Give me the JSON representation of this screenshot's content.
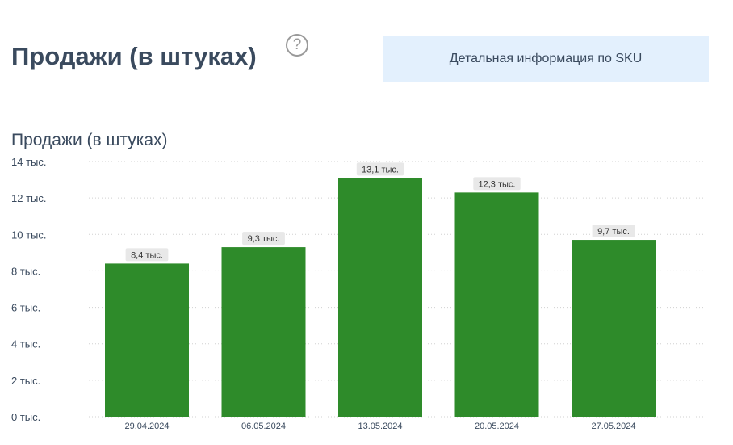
{
  "header": {
    "title": "Продажи (в штуках)",
    "help_icon": "question-circle-icon",
    "sku_button": "Детальная информация по SKU"
  },
  "chart_data": {
    "type": "bar",
    "title": "Продажи (в штуках)",
    "categories": [
      "29.04.2024",
      "06.05.2024",
      "13.05.2024",
      "20.05.2024",
      "27.05.2024"
    ],
    "values": [
      8400,
      9300,
      13100,
      12300,
      9700
    ],
    "data_labels": [
      "8,4 тыс.",
      "9,3 тыс.",
      "13,1 тыс.",
      "12,3 тыс.",
      "9,7 тыс."
    ],
    "yticks": [
      0,
      2000,
      4000,
      6000,
      8000,
      10000,
      12000,
      14000
    ],
    "ytick_labels": [
      "0 тыс.",
      "2 тыс.",
      "4 тыс.",
      "6 тыс.",
      "8 тыс.",
      "10 тыс.",
      "12 тыс.",
      "14 тыс."
    ],
    "ylim": [
      0,
      14000
    ],
    "xlabel": "",
    "ylabel": "",
    "grid": true,
    "bar_color": "#2e8b2a"
  }
}
